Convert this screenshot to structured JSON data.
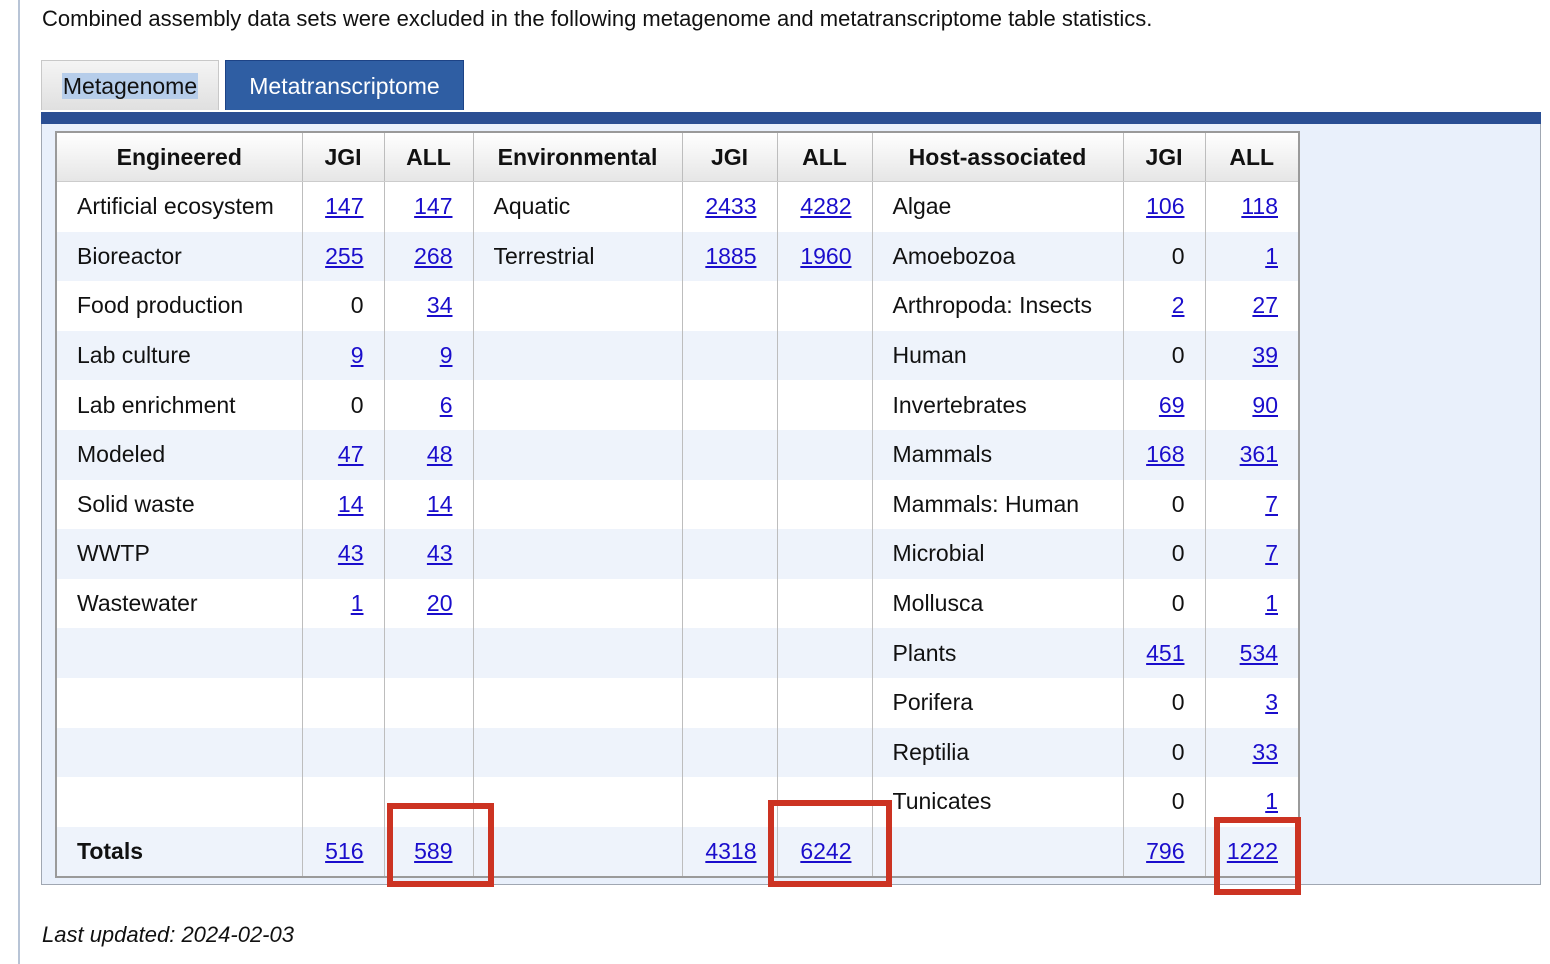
{
  "intro": "Combined assembly data sets were excluded in the following metagenome and metatranscriptome table statistics.",
  "tabs": [
    {
      "label": "Metagenome",
      "active": false
    },
    {
      "label": "Metatranscriptome",
      "active": true
    }
  ],
  "headers": {
    "engineered": "Engineered",
    "environmental": "Environmental",
    "host": "Host-associated",
    "jgi": "JGI",
    "all": "ALL"
  },
  "rows": [
    {
      "e_name": "Artificial ecosystem",
      "e_jgi": "147",
      "e_all": "147",
      "v_name": "Aquatic",
      "v_jgi": "2433",
      "v_all": "4282",
      "h_name": "Algae",
      "h_jgi": "106",
      "h_all": "118"
    },
    {
      "e_name": "Bioreactor",
      "e_jgi": "255",
      "e_all": "268",
      "v_name": "Terrestrial",
      "v_jgi": "1885",
      "v_all": "1960",
      "h_name": "Amoebozoa",
      "h_jgi": "0",
      "h_all": "1"
    },
    {
      "e_name": "Food production",
      "e_jgi": "0",
      "e_all": "34",
      "v_name": "",
      "v_jgi": "",
      "v_all": "",
      "h_name": "Arthropoda: Insects",
      "h_jgi": "2",
      "h_all": "27"
    },
    {
      "e_name": "Lab culture",
      "e_jgi": "9",
      "e_all": "9",
      "v_name": "",
      "v_jgi": "",
      "v_all": "",
      "h_name": "Human",
      "h_jgi": "0",
      "h_all": "39"
    },
    {
      "e_name": "Lab enrichment",
      "e_jgi": "0",
      "e_all": "6",
      "v_name": "",
      "v_jgi": "",
      "v_all": "",
      "h_name": "Invertebrates",
      "h_jgi": "69",
      "h_all": "90"
    },
    {
      "e_name": "Modeled",
      "e_jgi": "47",
      "e_all": "48",
      "v_name": "",
      "v_jgi": "",
      "v_all": "",
      "h_name": "Mammals",
      "h_jgi": "168",
      "h_all": "361"
    },
    {
      "e_name": "Solid waste",
      "e_jgi": "14",
      "e_all": "14",
      "v_name": "",
      "v_jgi": "",
      "v_all": "",
      "h_name": "Mammals: Human",
      "h_jgi": "0",
      "h_all": "7"
    },
    {
      "e_name": "WWTP",
      "e_jgi": "43",
      "e_all": "43",
      "v_name": "",
      "v_jgi": "",
      "v_all": "",
      "h_name": "Microbial",
      "h_jgi": "0",
      "h_all": "7"
    },
    {
      "e_name": "Wastewater",
      "e_jgi": "1",
      "e_all": "20",
      "v_name": "",
      "v_jgi": "",
      "v_all": "",
      "h_name": "Mollusca",
      "h_jgi": "0",
      "h_all": "1"
    },
    {
      "e_name": "",
      "e_jgi": "",
      "e_all": "",
      "v_name": "",
      "v_jgi": "",
      "v_all": "",
      "h_name": "Plants",
      "h_jgi": "451",
      "h_all": "534"
    },
    {
      "e_name": "",
      "e_jgi": "",
      "e_all": "",
      "v_name": "",
      "v_jgi": "",
      "v_all": "",
      "h_name": "Porifera",
      "h_jgi": "0",
      "h_all": "3"
    },
    {
      "e_name": "",
      "e_jgi": "",
      "e_all": "",
      "v_name": "",
      "v_jgi": "",
      "v_all": "",
      "h_name": "Reptilia",
      "h_jgi": "0",
      "h_all": "33"
    },
    {
      "e_name": "",
      "e_jgi": "",
      "e_all": "",
      "v_name": "",
      "v_jgi": "",
      "v_all": "",
      "h_name": "Tunicates",
      "h_jgi": "0",
      "h_all": "1"
    }
  ],
  "totals": {
    "label": "Totals",
    "e_jgi": "516",
    "e_all": "589",
    "v_jgi": "4318",
    "v_all": "6242",
    "h_jgi": "796",
    "h_all": "1222"
  },
  "highlight_color": "#cc3322",
  "updated": "Last updated: 2024-02-03"
}
